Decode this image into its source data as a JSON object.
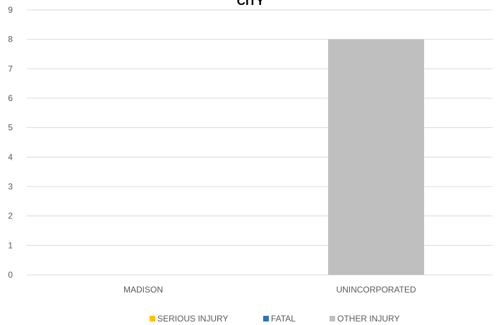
{
  "chart_data": {
    "type": "bar",
    "title": "CITY",
    "categories": [
      "MADISON",
      "UNINCORPORATED"
    ],
    "series": [
      {
        "name": "SERIOUS INJURY",
        "color": "#FFC000",
        "values": [
          0,
          0
        ]
      },
      {
        "name": "FATAL",
        "color": "#2E75B6",
        "values": [
          0,
          0
        ]
      },
      {
        "name": "OTHER INJURY",
        "color": "#BFBFBF",
        "values": [
          0,
          8
        ]
      }
    ],
    "stacked": true,
    "ylim": [
      0,
      9
    ],
    "yticks": [
      0,
      1,
      2,
      3,
      4,
      5,
      6,
      7,
      8,
      9
    ],
    "grid": true,
    "legend_position": "bottom"
  }
}
